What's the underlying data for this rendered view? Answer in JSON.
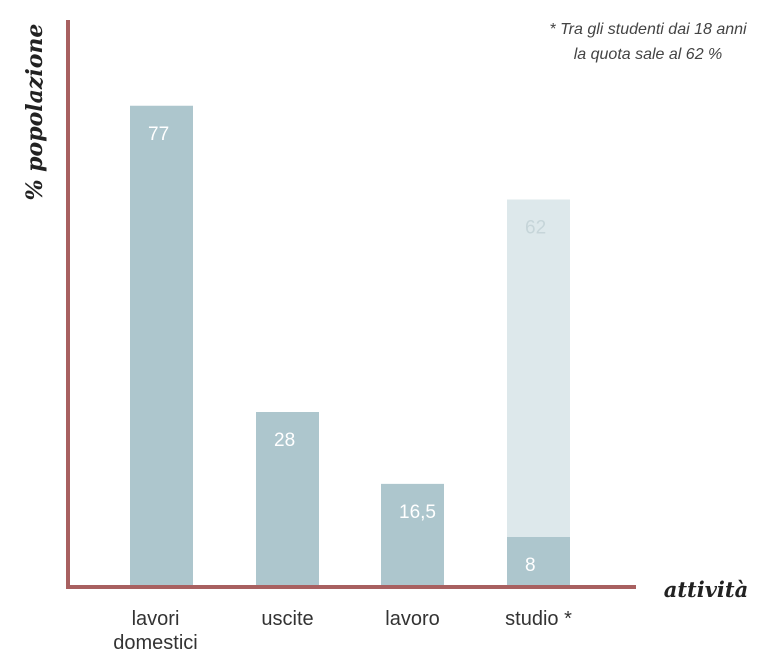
{
  "chart_data": {
    "type": "bar",
    "xlabel": "attività",
    "ylabel": "% popolazione",
    "note_lines": [
      "* Tra gli studenti dai 18 anni",
      "la quota sale al 62 %"
    ],
    "categories": [
      {
        "lines": [
          "lavori",
          "domestici"
        ]
      },
      {
        "lines": [
          "uscite"
        ]
      },
      {
        "lines": [
          "lavoro"
        ]
      },
      {
        "lines": [
          "studio *"
        ]
      }
    ],
    "series": [
      {
        "values": [
          77,
          28,
          16.5,
          8
        ],
        "labels": [
          "77",
          "28",
          "16,5",
          "8"
        ],
        "color": "#adc6cd"
      },
      {
        "values": [
          null,
          null,
          null,
          62
        ],
        "labels": [
          null,
          null,
          null,
          "62"
        ],
        "color": "#dde8eb",
        "label_color": "#c6d5d9"
      }
    ],
    "ylim": [
      0,
      90
    ],
    "grid": false,
    "axis_color": "#a86060"
  }
}
